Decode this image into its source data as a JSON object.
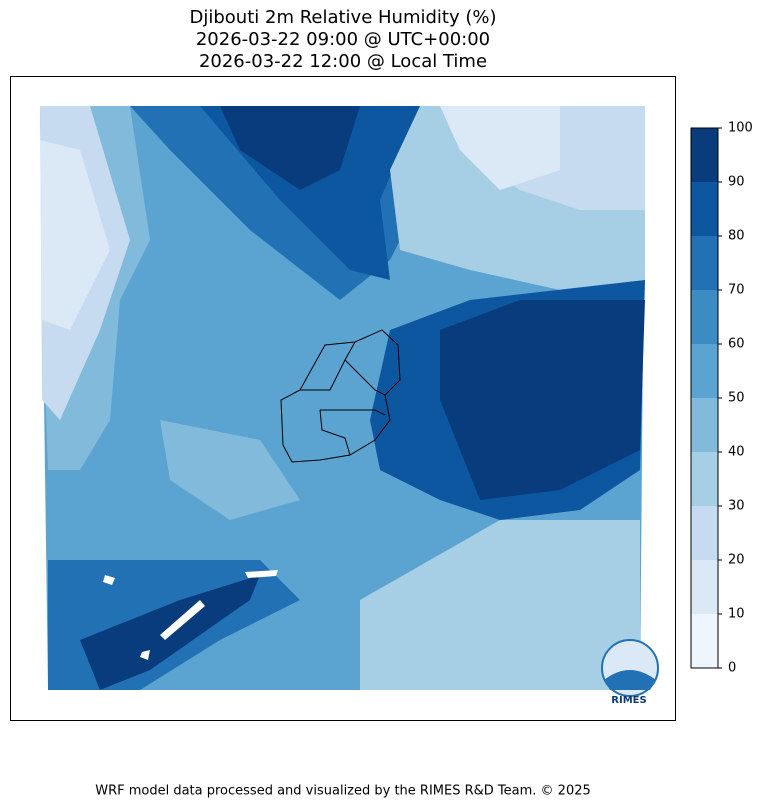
{
  "title_lines": [
    "Djibouti 2m Relative Humidity (%)",
    "2026-03-22 09:00 @ UTC+00:00",
    "2026-03-22 12:00 @ Local Time"
  ],
  "colorbar": {
    "ticks": [
      0,
      10,
      20,
      30,
      40,
      50,
      60,
      70,
      80,
      90,
      100
    ],
    "colors": [
      "#eef5fc",
      "#dbe9f6",
      "#c6dbef",
      "#a6cee4",
      "#82badb",
      "#5ba3d0",
      "#3d8bc3",
      "#2271b5",
      "#0d57a1",
      "#083c7d"
    ]
  },
  "logo_text": "RIMES",
  "footer": "WRF model data processed and visualized by the RIMES R&D Team. © 2025"
}
